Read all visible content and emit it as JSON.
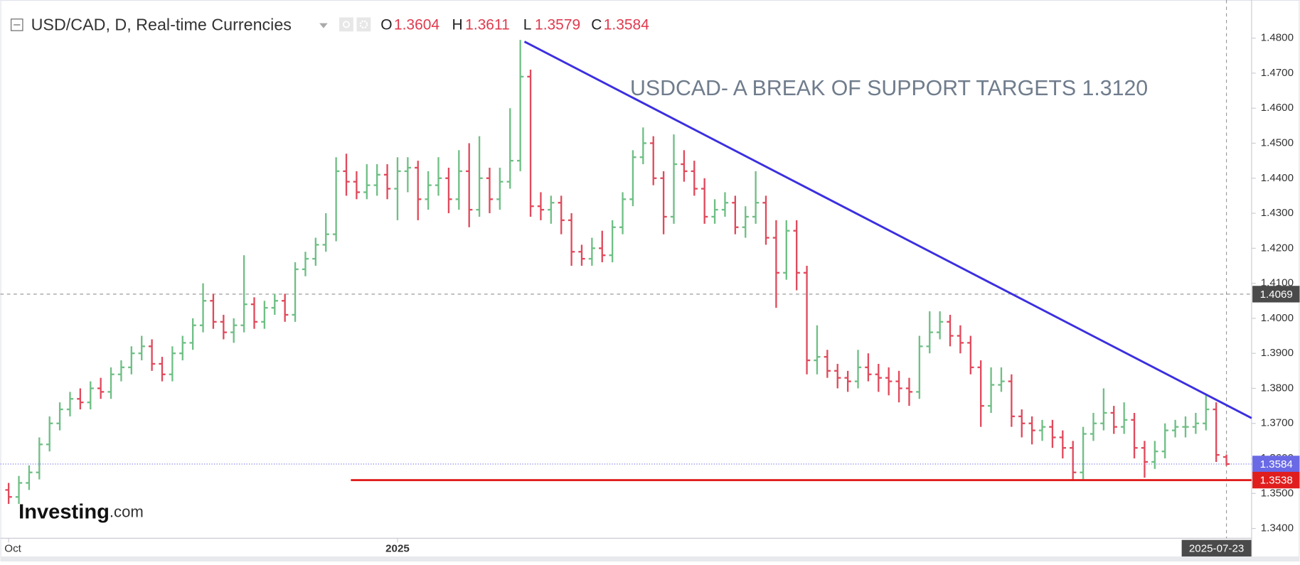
{
  "chart_data": {
    "type": "ohlc",
    "title": "USD/CAD, D, Real-time Currencies",
    "legend_labels": [
      "O",
      "H",
      "L",
      "C"
    ],
    "annotation": "USDCAD- A BREAK OF SUPPORT TARGETS 1.3120",
    "logo": {
      "name": "Investing",
      "suffix": ".com"
    },
    "up_color": "#6fbf85",
    "down_color": "#e04a5c",
    "trendline": {
      "color": "#3b2fe0",
      "values": [
        1.479,
        1.3715
      ]
    },
    "support_level": {
      "color": "#e01e1e",
      "value": 1.3538
    },
    "crosshair_price": 1.4069,
    "last_price_color": "#6a6ae6",
    "categories": [
      "Oct",
      null,
      null,
      null,
      null,
      null,
      null,
      null,
      null,
      null,
      null,
      null,
      null,
      null,
      null,
      null,
      null,
      null,
      null,
      null,
      null,
      null,
      null,
      null,
      null,
      null,
      null,
      null,
      null,
      null,
      null,
      null,
      null,
      null,
      null,
      null,
      null,
      null,
      "2025",
      null,
      null,
      null,
      null,
      null,
      null,
      null,
      null,
      null,
      null,
      null,
      null,
      null,
      null,
      null,
      null,
      null,
      null,
      null,
      null,
      null,
      null,
      null,
      null,
      null,
      null,
      null,
      null,
      null,
      null,
      null,
      null,
      null,
      null,
      null,
      null,
      null,
      null,
      null,
      null,
      null,
      null,
      null,
      null,
      null,
      null,
      null,
      null,
      null,
      null,
      null,
      null,
      null,
      null,
      null,
      null,
      null,
      null,
      null,
      null,
      null,
      null,
      null,
      null,
      null,
      null,
      null,
      null,
      null,
      null,
      null,
      null,
      null,
      null,
      null,
      null,
      null,
      null,
      null,
      null,
      "2025-07-23"
    ],
    "open": [
      1.351,
      1.349,
      1.353,
      1.356,
      1.364,
      1.37,
      1.374,
      1.377,
      1.376,
      1.38,
      1.379,
      1.384,
      1.386,
      1.39,
      1.392,
      1.387,
      1.384,
      1.39,
      1.393,
      1.398,
      1.405,
      1.399,
      1.396,
      1.398,
      1.404,
      1.399,
      1.403,
      1.405,
      1.401,
      1.414,
      1.417,
      1.421,
      1.424,
      1.442,
      1.439,
      1.436,
      1.438,
      1.441,
      1.437,
      1.442,
      1.443,
      1.434,
      1.438,
      1.44,
      1.434,
      1.442,
      1.431,
      1.44,
      1.434,
      1.439,
      1.445,
      1.469,
      1.432,
      1.431,
      1.433,
      1.428,
      1.419,
      1.417,
      1.42,
      1.418,
      1.426,
      1.434,
      1.446,
      1.45,
      1.44,
      1.429,
      1.444,
      1.442,
      1.437,
      1.429,
      1.431,
      1.433,
      1.426,
      1.429,
      1.433,
      1.423,
      1.413,
      1.425,
      1.413,
      1.388,
      1.389,
      1.385,
      1.383,
      1.382,
      1.386,
      1.384,
      1.383,
      1.382,
      1.38,
      1.379,
      1.392,
      1.396,
      1.399,
      1.395,
      1.393,
      1.386,
      1.375,
      1.381,
      1.382,
      1.372,
      1.37,
      1.368,
      1.369,
      1.366,
      1.363,
      1.356,
      1.367,
      1.37,
      1.373,
      1.369,
      1.371,
      1.363,
      1.359,
      1.362,
      1.368,
      1.369,
      1.369,
      1.37,
      1.374,
      1.3604
    ],
    "high": [
      1.353,
      1.355,
      1.358,
      1.366,
      1.372,
      1.376,
      1.379,
      1.38,
      1.382,
      1.383,
      1.386,
      1.388,
      1.392,
      1.395,
      1.394,
      1.389,
      1.392,
      1.395,
      1.4,
      1.41,
      1.407,
      1.401,
      1.4,
      1.418,
      1.406,
      1.405,
      1.407,
      1.407,
      1.416,
      1.419,
      1.423,
      1.43,
      1.446,
      1.447,
      1.442,
      1.444,
      1.444,
      1.444,
      1.446,
      1.446,
      1.445,
      1.442,
      1.446,
      1.443,
      1.448,
      1.45,
      1.452,
      1.443,
      1.443,
      1.46,
      1.4795,
      1.471,
      1.436,
      1.435,
      1.435,
      1.43,
      1.421,
      1.423,
      1.425,
      1.428,
      1.436,
      1.448,
      1.4545,
      1.452,
      1.442,
      1.4525,
      1.448,
      1.445,
      1.44,
      1.434,
      1.436,
      1.435,
      1.432,
      1.442,
      1.435,
      1.428,
      1.428,
      1.428,
      1.415,
      1.398,
      1.391,
      1.387,
      1.385,
      1.391,
      1.39,
      1.387,
      1.386,
      1.385,
      1.383,
      1.395,
      1.402,
      1.402,
      1.401,
      1.398,
      1.395,
      1.388,
      1.386,
      1.386,
      1.384,
      1.374,
      1.372,
      1.371,
      1.371,
      1.368,
      1.365,
      1.369,
      1.373,
      1.38,
      1.375,
      1.376,
      1.373,
      1.365,
      1.365,
      1.37,
      1.371,
      1.372,
      1.373,
      1.378,
      1.376,
      1.3611
    ],
    "low": [
      1.347,
      1.347,
      1.351,
      1.354,
      1.362,
      1.368,
      1.372,
      1.374,
      1.374,
      1.377,
      1.377,
      1.382,
      1.384,
      1.388,
      1.385,
      1.382,
      1.382,
      1.388,
      1.391,
      1.396,
      1.397,
      1.394,
      1.393,
      1.396,
      1.397,
      1.397,
      1.401,
      1.399,
      1.399,
      1.412,
      1.415,
      1.419,
      1.422,
      1.435,
      1.434,
      1.434,
      1.435,
      1.434,
      1.428,
      1.436,
      1.428,
      1.431,
      1.435,
      1.43,
      1.431,
      1.426,
      1.429,
      1.43,
      1.431,
      1.437,
      1.442,
      1.429,
      1.428,
      1.427,
      1.424,
      1.415,
      1.415,
      1.415,
      1.416,
      1.416,
      1.424,
      1.432,
      1.444,
      1.438,
      1.424,
      1.427,
      1.439,
      1.435,
      1.427,
      1.427,
      1.429,
      1.424,
      1.423,
      1.427,
      1.421,
      1.403,
      1.411,
      1.408,
      1.384,
      1.384,
      1.383,
      1.38,
      1.379,
      1.38,
      1.382,
      1.379,
      1.378,
      1.376,
      1.375,
      1.377,
      1.39,
      1.394,
      1.392,
      1.39,
      1.384,
      1.369,
      1.373,
      1.379,
      1.369,
      1.366,
      1.364,
      1.365,
      1.363,
      1.36,
      1.3535,
      1.354,
      1.365,
      1.368,
      1.367,
      1.367,
      1.36,
      1.3545,
      1.357,
      1.36,
      1.366,
      1.366,
      1.367,
      1.368,
      1.359,
      1.3579
    ],
    "close": [
      1.349,
      1.353,
      1.356,
      1.364,
      1.37,
      1.374,
      1.377,
      1.376,
      1.38,
      1.379,
      1.384,
      1.386,
      1.39,
      1.392,
      1.387,
      1.384,
      1.39,
      1.393,
      1.398,
      1.405,
      1.399,
      1.396,
      1.398,
      1.404,
      1.399,
      1.403,
      1.405,
      1.401,
      1.414,
      1.417,
      1.421,
      1.424,
      1.442,
      1.439,
      1.436,
      1.438,
      1.441,
      1.437,
      1.442,
      1.443,
      1.434,
      1.438,
      1.44,
      1.434,
      1.442,
      1.431,
      1.44,
      1.434,
      1.439,
      1.445,
      1.469,
      1.432,
      1.431,
      1.433,
      1.428,
      1.419,
      1.417,
      1.42,
      1.418,
      1.426,
      1.434,
      1.446,
      1.45,
      1.44,
      1.429,
      1.444,
      1.442,
      1.437,
      1.429,
      1.431,
      1.433,
      1.426,
      1.429,
      1.433,
      1.423,
      1.413,
      1.425,
      1.413,
      1.388,
      1.389,
      1.385,
      1.383,
      1.382,
      1.386,
      1.384,
      1.383,
      1.382,
      1.38,
      1.379,
      1.392,
      1.396,
      1.399,
      1.395,
      1.393,
      1.386,
      1.375,
      1.381,
      1.382,
      1.372,
      1.37,
      1.368,
      1.369,
      1.366,
      1.363,
      1.356,
      1.367,
      1.37,
      1.373,
      1.369,
      1.371,
      1.363,
      1.359,
      1.362,
      1.368,
      1.369,
      1.369,
      1.37,
      1.374,
      1.361,
      1.3584
    ],
    "ylim": [
      1.3372,
      1.4897
    ],
    "yticks": [
      {
        "value": 1.34,
        "label": "1.3400"
      },
      {
        "value": 1.35,
        "label": "1.3500"
      },
      {
        "value": 1.36,
        "label": "1.3600"
      },
      {
        "value": 1.37,
        "label": "1.3700"
      },
      {
        "value": 1.38,
        "label": "1.3800"
      },
      {
        "value": 1.39,
        "label": "1.3900"
      },
      {
        "value": 1.4,
        "label": "1.4000"
      },
      {
        "value": 1.41,
        "label": "1.4100"
      },
      {
        "value": 1.42,
        "label": "1.4200"
      },
      {
        "value": 1.43,
        "label": "1.4300"
      },
      {
        "value": 1.44,
        "label": "1.4400"
      },
      {
        "value": 1.45,
        "label": "1.4500"
      },
      {
        "value": 1.46,
        "label": "1.4600"
      },
      {
        "value": 1.47,
        "label": "1.4700"
      },
      {
        "value": 1.48,
        "label": "1.4800"
      }
    ]
  }
}
